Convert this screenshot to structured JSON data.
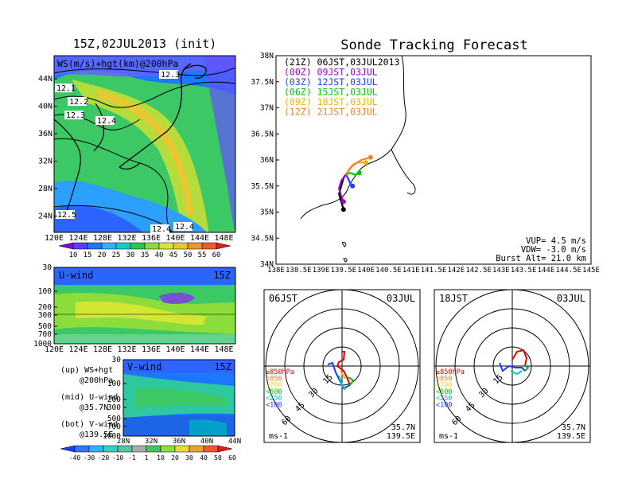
{
  "left_title": "15Z,02JUL2013 (init)",
  "right_title": "Sonde Tracking Forecast",
  "map_panel": {
    "label": "WS(m/s)+hgt(km)@200hPa",
    "lat_ticks": [
      "44N",
      "40N",
      "36N",
      "32N",
      "28N",
      "24N"
    ],
    "lon_ticks": [
      "120E",
      "124E",
      "128E",
      "132E",
      "136E",
      "140E",
      "144E",
      "148E"
    ],
    "contour_labels": [
      "12.1",
      "12.2",
      "12.3",
      "12.3",
      "12.4",
      "12.5",
      "12.4",
      "12.4"
    ],
    "colorbar_ticks": [
      "10",
      "15",
      "20",
      "25",
      "30",
      "35",
      "40",
      "45",
      "50",
      "55",
      "60"
    ]
  },
  "u_panel": {
    "label": "U-wind",
    "time": "15Z",
    "p_ticks": [
      "30",
      "100",
      "200",
      "300",
      "500",
      "700",
      "1000"
    ],
    "lon_ticks": [
      "120E",
      "124E",
      "128E",
      "132E",
      "136E",
      "140E",
      "144E",
      "148E"
    ]
  },
  "v_panel": {
    "label": "V-wind",
    "time": "15Z",
    "p_ticks": [
      "30",
      "100",
      "200",
      "300",
      "500",
      "700",
      "1000"
    ],
    "lat_ticks": [
      "28N",
      "32N",
      "36N",
      "40N",
      "44N"
    ]
  },
  "legend_notes": [
    {
      "a": "(up) WS+hgt",
      "b": "@200hPa"
    },
    {
      "a": "(mid) U-wind",
      "b": "@35.7N"
    },
    {
      "a": "(bot) V-wind",
      "b": "@139.5E"
    }
  ],
  "bottom_colorbar_ticks": [
    "-40",
    "-30",
    "-20",
    "-10",
    "-1",
    "1",
    "10",
    "20",
    "30",
    "40",
    "50",
    "60"
  ],
  "track_panel": {
    "lat_ticks": [
      "38N",
      "37.5N",
      "37N",
      "36.5N",
      "36N",
      "35.5N",
      "35N",
      "34.5N",
      "34N"
    ],
    "lon_ticks": [
      "138E",
      "138.5E",
      "139E",
      "139.5E",
      "140E",
      "140.5E",
      "141E",
      "141.5E",
      "142E",
      "142.5E",
      "143E",
      "143.5E",
      "144E",
      "144.5E",
      "145E"
    ],
    "legend": [
      {
        "text": "(21Z) 06JST,03JUL2013",
        "color": "#000000"
      },
      {
        "text": "(00Z) 09JST,03JUL",
        "color": "#a000c8"
      },
      {
        "text": "(03Z) 12JST,03JUL",
        "color": "#1e3cff"
      },
      {
        "text": "(06Z) 15JST,03JUL",
        "color": "#00c800"
      },
      {
        "text": "(09Z) 18JST,03JUL",
        "color": "#f0b400"
      },
      {
        "text": "(12Z) 21JST,03JUL",
        "color": "#f08228"
      }
    ],
    "params": [
      "VUP= 4.5 m/s",
      "VDW= -3.0 m/s",
      "Burst Alt= 21.0 km"
    ]
  },
  "hodographs": [
    {
      "time": "06JST",
      "date": "03JUL",
      "lat": "35.7N",
      "lon": "139.5E",
      "unit": "ms-1",
      "ring_labels": [
        "15",
        "30",
        "45",
        "60"
      ]
    },
    {
      "time": "18JST",
      "date": "03JUL",
      "lat": "35.7N",
      "lon": "139.5E",
      "unit": "ms-1",
      "ring_labels": [
        "15",
        "30",
        "45",
        "60"
      ]
    }
  ],
  "hodo_legend": [
    {
      "text": "≥850hPa",
      "color": "#e00000"
    },
    {
      "text": "<850",
      "color": "#f08228"
    },
    {
      "text": "<700",
      "color": "#e6dc32"
    },
    {
      "text": "<500",
      "color": "#00c800"
    },
    {
      "text": "<250",
      "color": "#00c8c8"
    },
    {
      "text": "<100",
      "color": "#1e3cff"
    }
  ],
  "chart_data": [
    {
      "type": "line",
      "title": "Sonde Tracking Forecast",
      "xlim": [
        138,
        145
      ],
      "ylim": [
        34,
        38
      ],
      "series": [
        {
          "name": "(21Z) 06JST,03JUL2013",
          "x": [
            139.55,
            139.5,
            139.45,
            139.4,
            139.45,
            139.5
          ],
          "y": [
            35.72,
            35.65,
            35.5,
            35.35,
            35.2,
            35.05
          ]
        },
        {
          "name": "(00Z) 09JST,03JUL",
          "x": [
            139.55,
            139.45,
            139.4,
            139.45,
            139.5
          ],
          "y": [
            35.72,
            35.6,
            35.45,
            35.3,
            35.2
          ]
        },
        {
          "name": "(03Z) 12JST,03JUL",
          "x": [
            139.55,
            139.6,
            139.65,
            139.7
          ],
          "y": [
            35.72,
            35.65,
            35.55,
            35.5
          ]
        },
        {
          "name": "(06Z) 15JST,03JUL",
          "x": [
            139.55,
            139.65,
            139.75,
            139.85
          ],
          "y": [
            35.72,
            35.75,
            35.72,
            35.75
          ]
        },
        {
          "name": "(09Z) 18JST,03JUL",
          "x": [
            139.55,
            139.65,
            139.8,
            140.0
          ],
          "y": [
            35.72,
            35.85,
            35.95,
            35.95
          ]
        },
        {
          "name": "(12Z) 21JST,03JUL",
          "x": [
            139.55,
            139.7,
            139.9,
            140.1
          ],
          "y": [
            35.72,
            35.9,
            36.0,
            36.05
          ]
        }
      ]
    }
  ]
}
